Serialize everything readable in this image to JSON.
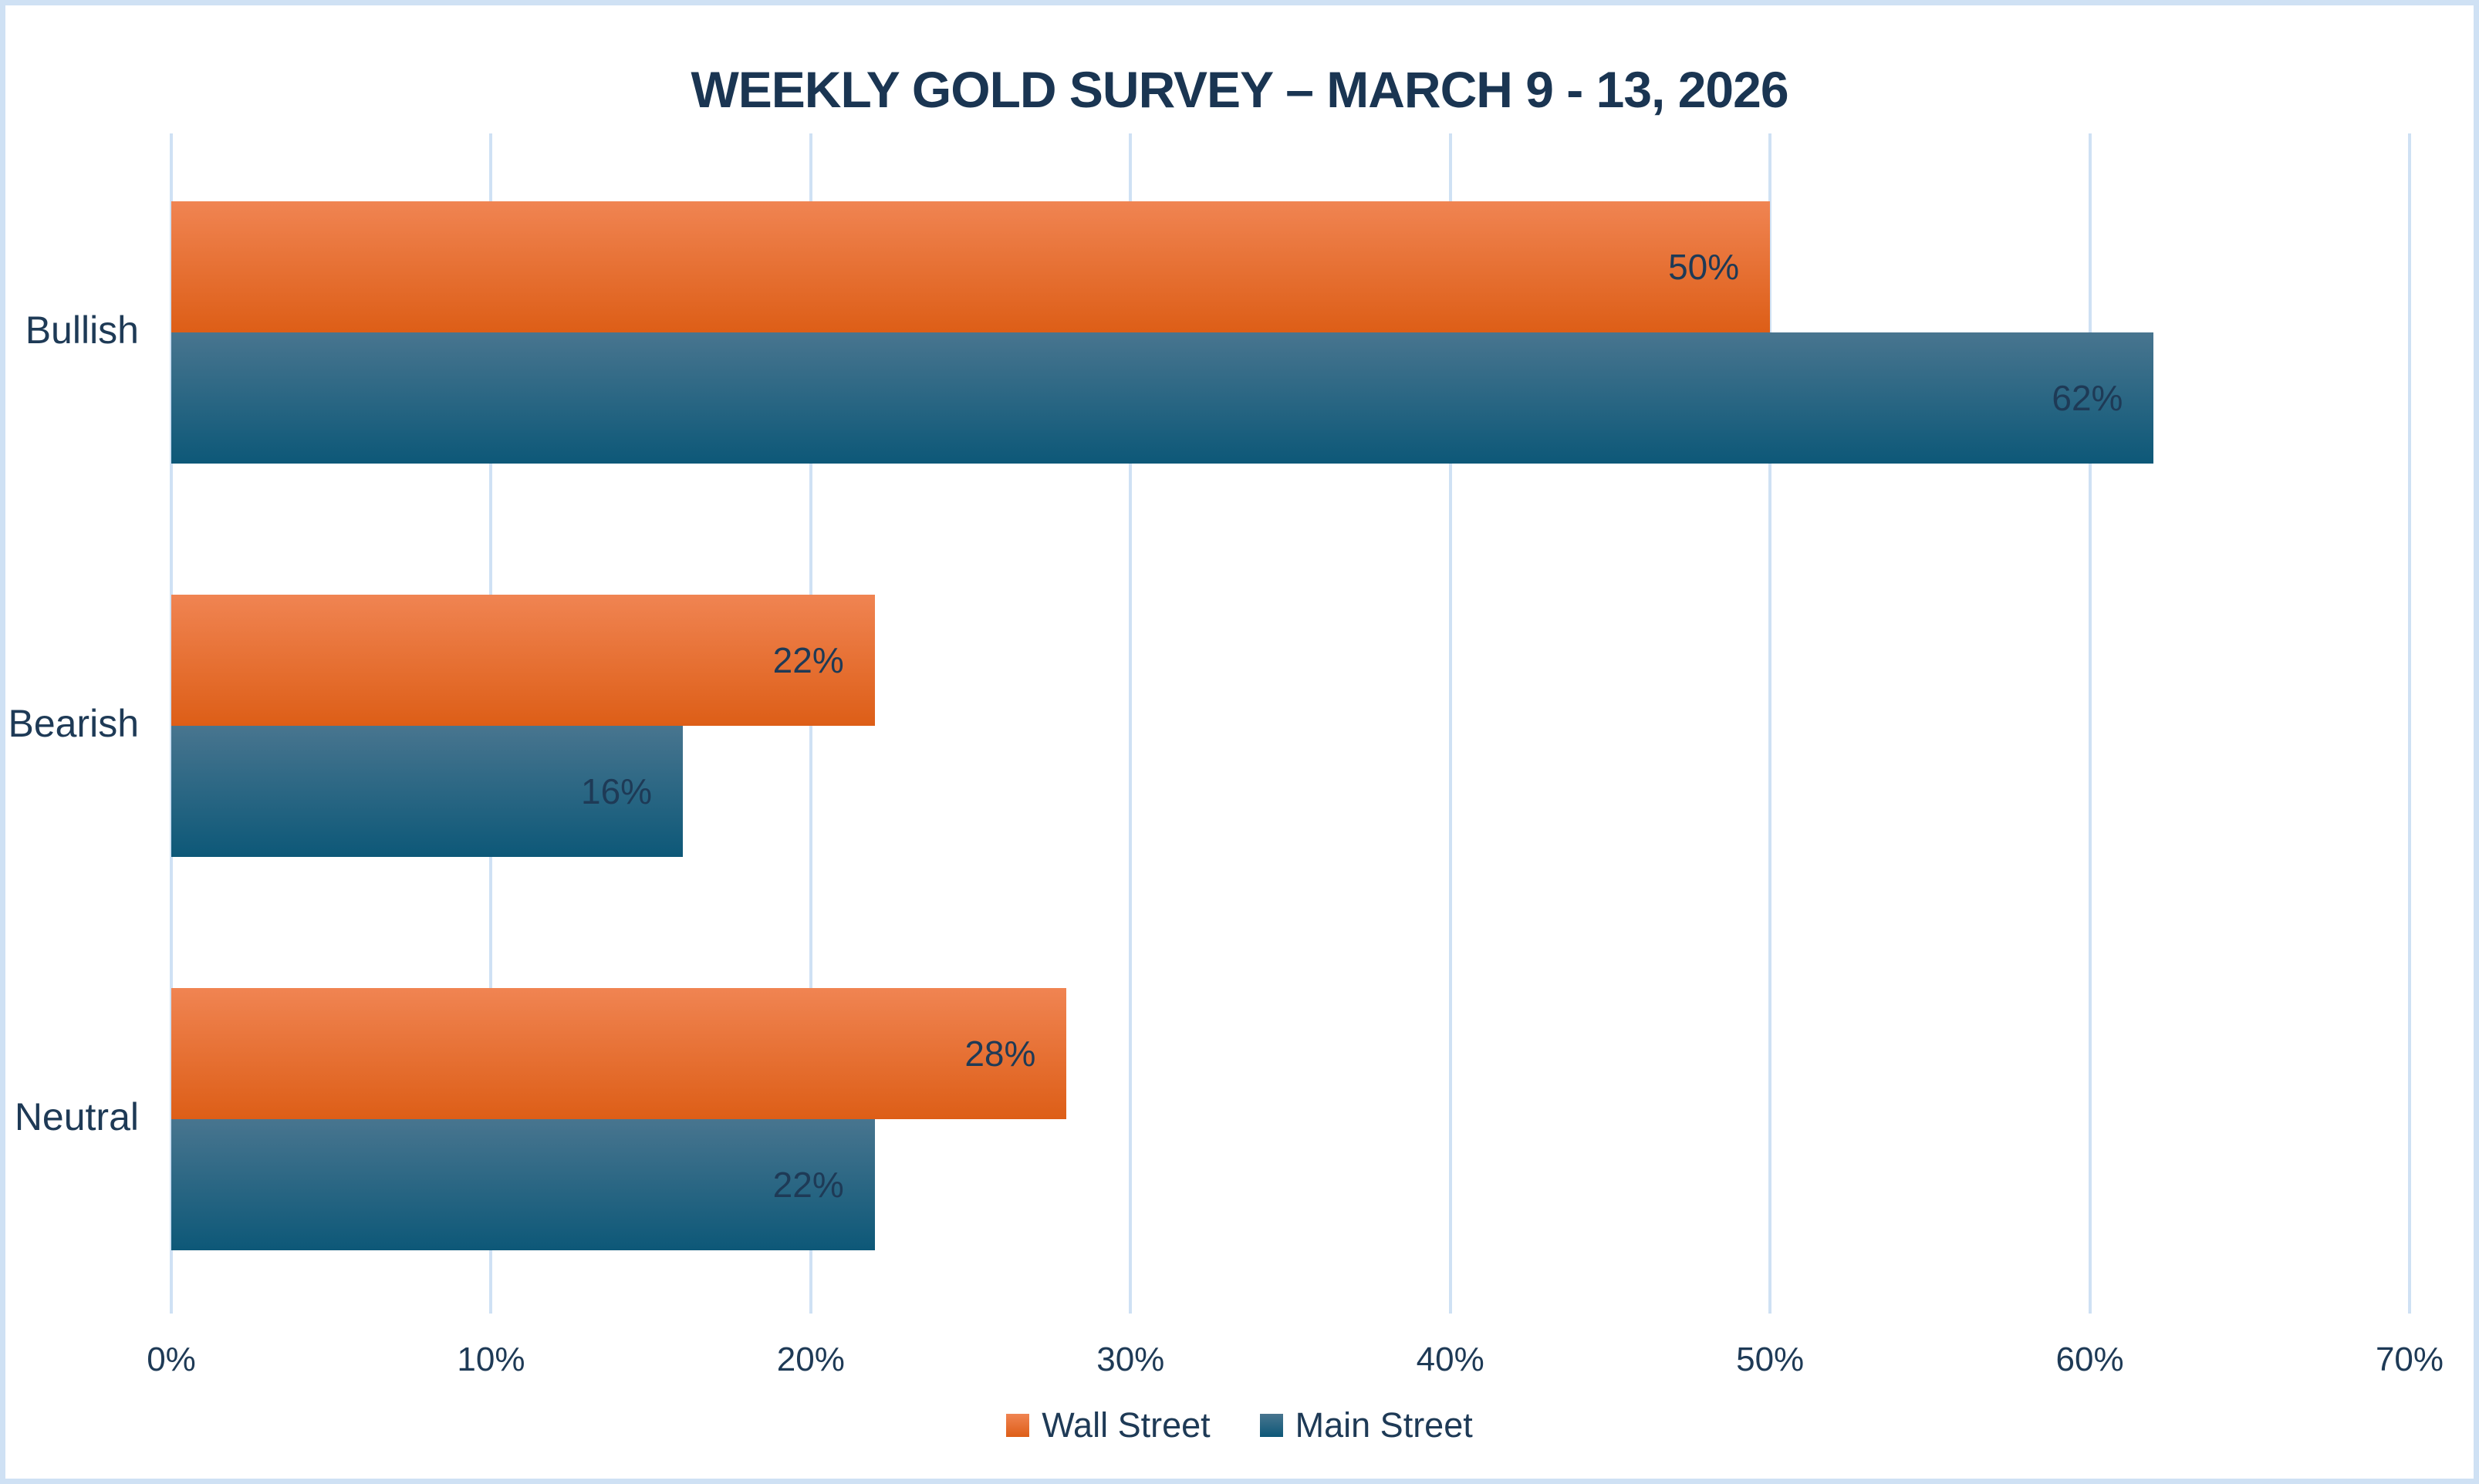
{
  "chart_data": {
    "type": "bar",
    "orientation": "horizontal",
    "title": "WEEKLY GOLD SURVEY – MARCH 9 - 13, 2026",
    "categories": [
      "Bullish",
      "Bearish",
      "Neutral"
    ],
    "series": [
      {
        "name": "Wall Street",
        "values": [
          50,
          22,
          28
        ],
        "color_top": "#F08452",
        "color_bottom": "#DD5E17"
      },
      {
        "name": "Main Street",
        "values": [
          62,
          16,
          22
        ],
        "color_top": "#48758F",
        "color_bottom": "#0D5878"
      }
    ],
    "value_suffix": "%",
    "data_labels": [
      "50%",
      "62%",
      "22%",
      "16%",
      "28%",
      "22%"
    ],
    "data_label_position": "inside-end",
    "xlim": [
      0,
      70
    ],
    "x_ticks": [
      "0%",
      "10%",
      "20%",
      "30%",
      "40%",
      "50%",
      "60%",
      "70%"
    ],
    "grid": true,
    "legend_position": "bottom"
  },
  "colors": {
    "frame_border": "#cfe1f4",
    "gridline": "#cfe1f4",
    "title_text": "#1a3552",
    "label_text": "#1e3a56",
    "background": "#ffffff"
  }
}
